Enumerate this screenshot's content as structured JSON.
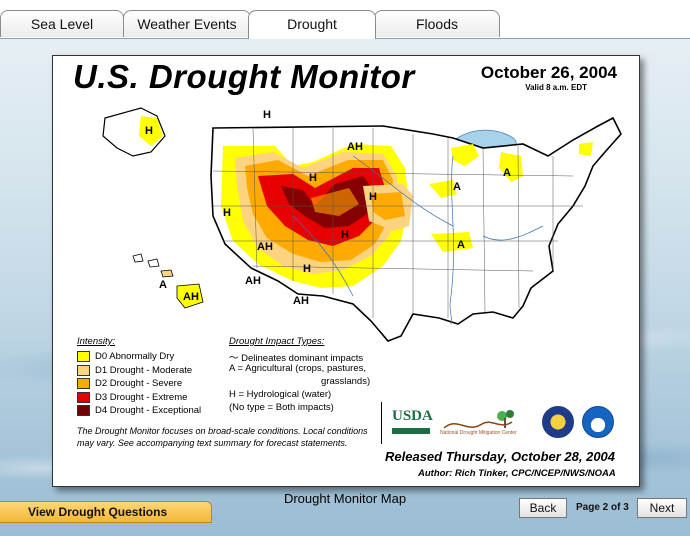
{
  "tabs": [
    {
      "label": "Sea Level",
      "active": false
    },
    {
      "label": "Weather Events",
      "active": false
    },
    {
      "label": "Drought",
      "active": true
    },
    {
      "label": "Floods",
      "active": false
    }
  ],
  "map": {
    "title": "U.S. Drought Monitor",
    "date": "October 26, 2004",
    "valid": "Valid 8 a.m. EDT",
    "region_labels": [
      "H",
      "H",
      "AH",
      "H",
      "H",
      "H",
      "H",
      "A",
      "A",
      "A",
      "AH",
      "H",
      "AH",
      "AH",
      "A",
      "AH"
    ],
    "legend": {
      "heading": "Intensity:",
      "items": [
        {
          "label": "D0 Abnormally Dry",
          "color": "#ffff00"
        },
        {
          "label": "D1 Drought - Moderate",
          "color": "#fcd37f"
        },
        {
          "label": "D2 Drought - Severe",
          "color": "#ffaa00"
        },
        {
          "label": "D3 Drought - Extreme",
          "color": "#e60000"
        },
        {
          "label": "D4 Drought - Exceptional",
          "color": "#730000"
        }
      ]
    },
    "impacts": {
      "heading": "Drought Impact Types:",
      "lines": [
        "Delineates dominant impacts",
        "A = Agricultural (crops, pastures,",
        "grasslands)",
        "H = Hydrological (water)",
        "(No type = Both impacts)"
      ]
    },
    "note": "The Drought Monitor focuses on broad-scale conditions. Local conditions may vary.  See accompanying text summary for forecast statements.",
    "logos": {
      "usda": "USDA",
      "ndmc": "National Drought Mitigation Center"
    },
    "released": "Released Thursday, October 28, 2004",
    "author": "Author: Rich Tinker, CPC/NCEP/NWS/NOAA"
  },
  "caption": "Drought Monitor Map",
  "buttons": {
    "view_questions": "View Drought Questions",
    "back": "Back",
    "next": "Next",
    "page_indicator": "Page 2 of 3"
  }
}
